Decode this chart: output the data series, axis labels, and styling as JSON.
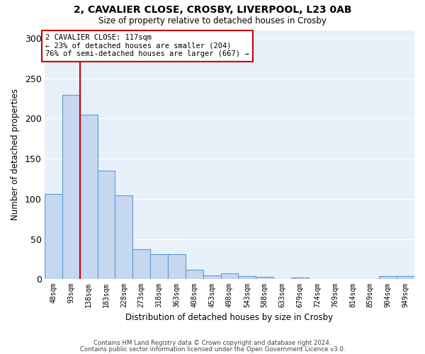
{
  "title1": "2, CAVALIER CLOSE, CROSBY, LIVERPOOL, L23 0AB",
  "title2": "Size of property relative to detached houses in Crosby",
  "xlabel": "Distribution of detached houses by size in Crosby",
  "ylabel": "Number of detached properties",
  "bar_labels": [
    "48sqm",
    "93sqm",
    "138sqm",
    "183sqm",
    "228sqm",
    "273sqm",
    "318sqm",
    "363sqm",
    "408sqm",
    "453sqm",
    "498sqm",
    "543sqm",
    "588sqm",
    "633sqm",
    "679sqm",
    "724sqm",
    "769sqm",
    "814sqm",
    "859sqm",
    "904sqm",
    "949sqm"
  ],
  "bar_values": [
    106,
    229,
    205,
    135,
    104,
    37,
    31,
    31,
    12,
    5,
    7,
    4,
    3,
    0,
    2,
    0,
    0,
    0,
    0,
    4,
    4
  ],
  "bar_color": "#c5d8f0",
  "bar_edge_color": "#5b9bd5",
  "bg_color": "#e8f0fa",
  "grid_color": "#ffffff",
  "vline_color": "#cc0000",
  "vline_pos": 1.5,
  "annotation_title": "2 CAVALIER CLOSE: 117sqm",
  "annotation_line1": "← 23% of detached houses are smaller (204)",
  "annotation_line2": "76% of semi-detached houses are larger (667) →",
  "annotation_box_color": "#cc0000",
  "ylim": [
    0,
    310
  ],
  "yticks": [
    0,
    50,
    100,
    150,
    200,
    250,
    300
  ],
  "footer1": "Contains HM Land Registry data © Crown copyright and database right 2024.",
  "footer2": "Contains public sector information licensed under the Open Government Licence v3.0."
}
